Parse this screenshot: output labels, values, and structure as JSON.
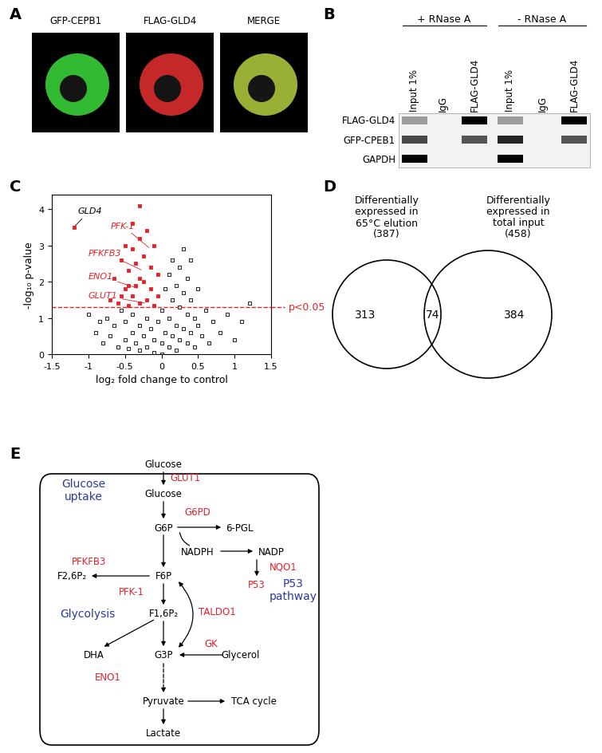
{
  "panels": {
    "A": {
      "letter": "A",
      "images": [
        {
          "label": "GFP-CEPB1",
          "color": "#3ddc3d"
        },
        {
          "label": "FLAG-GLD4",
          "color": "#e83030"
        },
        {
          "label": "MERGE",
          "color": "#b5d040"
        }
      ]
    },
    "B": {
      "letter": "B",
      "groups": [
        "+ RNase A",
        "- RNase A"
      ],
      "lanes": [
        "Input 1%",
        "IgG",
        "FLAG-GLD4",
        "Input 1%",
        "IgG",
        "FLAG-GLD4"
      ],
      "rows": [
        "FLAG-GLD4",
        "GFP-CPEB1",
        "GAPDH"
      ],
      "band_intensity": [
        [
          0.35,
          0,
          1,
          0.35,
          0,
          1
        ],
        [
          0.7,
          0,
          0.65,
          0.85,
          0,
          0.65
        ],
        [
          1,
          0,
          0,
          1,
          0,
          0
        ]
      ]
    },
    "C": {
      "letter": "C"
    },
    "D": {
      "letter": "D",
      "left": {
        "lines": [
          "Differentially",
          "expressed in",
          "65°C elution",
          "(387)"
        ],
        "only": 313
      },
      "right": {
        "lines": [
          "Differentially",
          "expressed in",
          "total input",
          "(458)"
        ],
        "only": 384
      },
      "overlap": 74
    },
    "E": {
      "letter": "E",
      "nodes": {
        "glc_out": {
          "label": "Glucose",
          "color": "#000000"
        },
        "glut1": {
          "label": "GLUT1",
          "color": "#e8202a"
        },
        "uptake": {
          "label": "Glucose\nuptake",
          "color": "#2b3a9e"
        },
        "glc_in": {
          "label": "Glucose",
          "color": "#000000"
        },
        "g6p": {
          "label": "G6P",
          "color": "#000000"
        },
        "g6pd": {
          "label": "G6PD",
          "color": "#e8202a"
        },
        "pgl": {
          "label": "6-PGL",
          "color": "#000000"
        },
        "nadph": {
          "label": "NADPH",
          "color": "#000000"
        },
        "nadp": {
          "label": "NADP",
          "color": "#000000"
        },
        "nqo1": {
          "label": "NQO1",
          "color": "#e8202a"
        },
        "p53": {
          "label": "P53",
          "color": "#e8202a"
        },
        "p53path": {
          "label": "P53\npathway",
          "color": "#2b3a9e"
        },
        "pfkfb3": {
          "label": "PFKFB3",
          "color": "#e8202a"
        },
        "f26": {
          "label": "F2,6P₂",
          "color": "#000000"
        },
        "f6p": {
          "label": "F6P",
          "color": "#000000"
        },
        "pfk1": {
          "label": "PFK-1",
          "color": "#e8202a"
        },
        "glyco": {
          "label": "Glycolysis",
          "color": "#2b3a9e"
        },
        "f16": {
          "label": "F1,6P₂",
          "color": "#000000"
        },
        "taldo1": {
          "label": "TALDO1",
          "color": "#e8202a"
        },
        "dha": {
          "label": "DHA",
          "color": "#000000"
        },
        "g3p": {
          "label": "G3P",
          "color": "#000000"
        },
        "gk": {
          "label": "GK",
          "color": "#e8202a"
        },
        "glycerol": {
          "label": "Glycerol",
          "color": "#000000"
        },
        "eno1": {
          "label": "ENO1",
          "color": "#e8202a"
        },
        "pyr": {
          "label": "Pyruvate",
          "color": "#000000"
        },
        "tca": {
          "label": "TCA cycle",
          "color": "#000000"
        },
        "lac": {
          "label": "Lactate",
          "color": "#000000"
        }
      }
    }
  },
  "chart_data": {
    "type": "scatter",
    "xlabel": "log₂ fold change to control",
    "ylabel": "-log₁₀ p-value",
    "xlim": [
      -1.5,
      1.5
    ],
    "ylim": [
      0,
      4.4
    ],
    "xticks": [
      -1.5,
      -1,
      -0.5,
      0,
      0.5,
      1,
      1.5
    ],
    "yticks": [
      0,
      1,
      2,
      3,
      4
    ],
    "grid": false,
    "series": [
      {
        "color": "#000000",
        "marker": "open square",
        "x": [
          -1.0,
          -0.9,
          -0.85,
          -0.8,
          -0.75,
          -0.7,
          -0.65,
          -0.6,
          -0.55,
          -0.5,
          -0.5,
          -0.45,
          -0.4,
          -0.4,
          -0.35,
          -0.3,
          -0.3,
          -0.25,
          -0.2,
          -0.2,
          -0.15,
          -0.1,
          -0.1,
          -0.05,
          0.0,
          0.0,
          0.0,
          0.05,
          0.05,
          0.1,
          0.1,
          0.1,
          0.15,
          0.15,
          0.15,
          0.2,
          0.2,
          0.2,
          0.25,
          0.25,
          0.25,
          0.3,
          0.3,
          0.3,
          0.35,
          0.35,
          0.35,
          0.4,
          0.4,
          0.4,
          0.45,
          0.45,
          0.5,
          0.5,
          0.55,
          0.6,
          0.65,
          0.7,
          0.8,
          0.9,
          1.0,
          1.1,
          1.2
        ],
        "values": [
          1.1,
          0.6,
          0.9,
          0.3,
          1.0,
          0.5,
          0.8,
          0.2,
          1.2,
          0.4,
          0.9,
          0.15,
          0.6,
          1.1,
          0.3,
          0.8,
          0.1,
          0.5,
          1.0,
          0.2,
          0.7,
          0.05,
          0.4,
          0.9,
          0.0,
          0.3,
          1.2,
          0.6,
          1.8,
          0.2,
          1.0,
          2.2,
          0.5,
          1.5,
          2.6,
          0.1,
          0.8,
          1.9,
          0.4,
          1.3,
          2.4,
          0.7,
          1.7,
          2.9,
          0.3,
          1.1,
          2.1,
          0.6,
          1.5,
          2.6,
          0.2,
          1.0,
          0.8,
          1.8,
          0.5,
          1.2,
          0.3,
          0.9,
          0.6,
          1.1,
          0.4,
          0.9,
          1.4
        ]
      },
      {
        "color": "#e8202a",
        "marker": "square",
        "x": [
          -1.2,
          -0.7,
          -0.65,
          -0.6,
          -0.55,
          -0.5,
          -0.5,
          -0.45,
          -0.45,
          -0.4,
          -0.4,
          -0.4,
          -0.35,
          -0.35,
          -0.3,
          -0.3,
          -0.3,
          -0.25,
          -0.25,
          -0.2,
          -0.2,
          -0.15,
          -0.15,
          -0.1,
          -0.1,
          -0.05,
          -0.05,
          -0.3,
          -0.45,
          -0.55
        ],
        "values": [
          3.5,
          1.5,
          2.1,
          1.4,
          2.6,
          1.8,
          3.0,
          1.35,
          2.3,
          1.6,
          2.9,
          3.6,
          1.9,
          2.5,
          1.4,
          3.2,
          4.1,
          2.0,
          2.7,
          1.5,
          3.4,
          1.8,
          2.4,
          1.35,
          3.0,
          1.6,
          2.2,
          2.1,
          1.9,
          1.6
        ]
      }
    ],
    "threshold": {
      "value": 1.3,
      "label": "p<0.05",
      "color": "#e8202a",
      "line_style": "dashed"
    },
    "annotations": [
      {
        "text": "GLD4",
        "x": -1.2,
        "y": 3.5,
        "color": "#000000"
      },
      {
        "text": "PFK-1",
        "x": -0.15,
        "y": 2.9,
        "color": "#e8202a"
      },
      {
        "text": "PFKFB3",
        "x": -0.25,
        "y": 2.3,
        "color": "#e8202a"
      },
      {
        "text": "ENO1",
        "x": -0.3,
        "y": 1.8,
        "color": "#e8202a"
      },
      {
        "text": "GLUT1",
        "x": -0.2,
        "y": 1.4,
        "color": "#e8202a"
      }
    ]
  }
}
